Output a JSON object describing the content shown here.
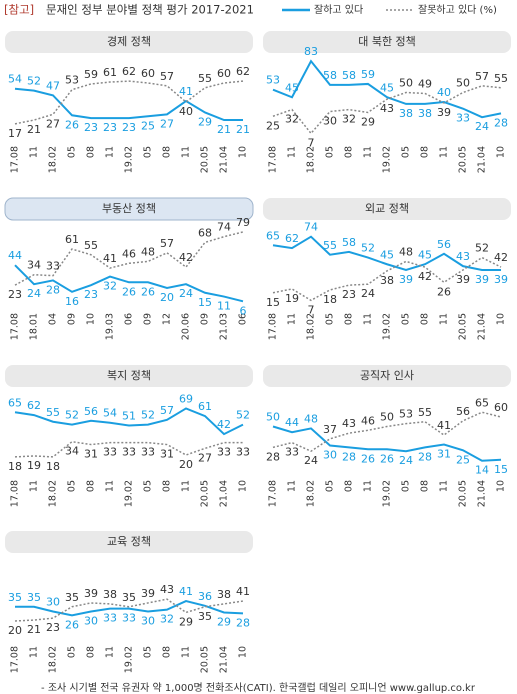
{
  "header": {
    "tag": "[참고]",
    "title": "문재인 정부 분야별 정책 평가 2017-2021"
  },
  "legend": [
    {
      "name": "잘하고 있다",
      "color": "#1a9ee0",
      "dash": false
    },
    {
      "name": "잘못하고 있다 (%)",
      "color": "#888888",
      "dash": true
    }
  ],
  "chart_data": [
    {
      "type": "line",
      "title": "경제 정책",
      "ylim": [
        0,
        100
      ],
      "categories": [
        "17.08",
        "11",
        "18.02",
        "05",
        "08",
        "11",
        "19.02",
        "05",
        "08",
        "11",
        "20.05",
        "21.04",
        "10"
      ],
      "series": [
        {
          "values": [
            54,
            52,
            47,
            26,
            23,
            23,
            23,
            25,
            27,
            41,
            29,
            21,
            21
          ]
        },
        {
          "values": [
            17,
            21,
            27,
            53,
            59,
            61,
            62,
            60,
            57,
            40,
            55,
            60,
            62
          ]
        }
      ]
    },
    {
      "type": "line",
      "title": "대 북한 정책",
      "ylim": [
        0,
        100
      ],
      "categories": [
        "17.08",
        "11",
        "18.02",
        "05",
        "08",
        "11",
        "19.02",
        "05",
        "08",
        "11",
        "20.05",
        "21.04",
        "10"
      ],
      "series": [
        {
          "values": [
            53,
            45,
            83,
            58,
            58,
            59,
            45,
            38,
            38,
            40,
            33,
            24,
            28
          ]
        },
        {
          "values": [
            25,
            32,
            7,
            30,
            32,
            29,
            43,
            50,
            49,
            39,
            50,
            57,
            55
          ]
        }
      ]
    },
    {
      "type": "line",
      "title": "부동산 정책",
      "ylim": [
        0,
        100
      ],
      "highlight": true,
      "categories": [
        "17.08",
        "18.01",
        "04",
        "09",
        "10",
        "19.03",
        "06",
        "09",
        "12",
        "20.06",
        "09",
        "21.03",
        "06"
      ],
      "series": [
        {
          "values": [
            44,
            24,
            28,
            16,
            23,
            32,
            26,
            26,
            20,
            24,
            15,
            11,
            6
          ]
        },
        {
          "values": [
            23,
            34,
            33,
            61,
            55,
            41,
            46,
            48,
            57,
            42,
            68,
            74,
            79
          ]
        }
      ]
    },
    {
      "type": "line",
      "title": "외교 정책",
      "ylim": [
        0,
        100
      ],
      "categories": [
        "17.08",
        "11",
        "18.02",
        "05",
        "08",
        "11",
        "19.02",
        "05",
        "08",
        "11",
        "20.05",
        "21.04",
        "10"
      ],
      "series": [
        {
          "values": [
            65,
            62,
            74,
            55,
            58,
            52,
            45,
            39,
            45,
            56,
            43,
            39,
            39
          ]
        },
        {
          "values": [
            15,
            19,
            7,
            18,
            23,
            24,
            38,
            48,
            42,
            26,
            39,
            52,
            42
          ]
        }
      ]
    },
    {
      "type": "line",
      "title": "복지 정책",
      "ylim": [
        0,
        100
      ],
      "categories": [
        "17.08",
        "11",
        "18.02",
        "05",
        "08",
        "11",
        "19.02",
        "05",
        "08",
        "11",
        "20.05",
        "21.04",
        "10"
      ],
      "series": [
        {
          "values": [
            65,
            62,
            55,
            52,
            56,
            54,
            51,
            52,
            57,
            69,
            61,
            42,
            52
          ]
        },
        {
          "values": [
            18,
            19,
            18,
            34,
            31,
            33,
            33,
            33,
            31,
            20,
            27,
            33,
            33
          ]
        }
      ]
    },
    {
      "type": "line",
      "title": "공직자 인사",
      "ylim": [
        0,
        100
      ],
      "categories": [
        "17.08",
        "11",
        "18.02",
        "05",
        "08",
        "11",
        "19.02",
        "05",
        "08",
        "11",
        "20.05",
        "21.04",
        "10"
      ],
      "series": [
        {
          "values": [
            50,
            44,
            48,
            30,
            28,
            26,
            26,
            24,
            28,
            31,
            25,
            14,
            15
          ]
        },
        {
          "values": [
            28,
            33,
            24,
            37,
            43,
            46,
            50,
            53,
            55,
            41,
            56,
            65,
            60
          ]
        }
      ]
    },
    {
      "type": "line",
      "title": "교육 정책",
      "ylim": [
        0,
        100
      ],
      "categories": [
        "17.08",
        "11",
        "18.02",
        "05",
        "08",
        "11",
        "19.02",
        "05",
        "08",
        "11",
        "20.05",
        "21.04",
        "10"
      ],
      "series": [
        {
          "values": [
            35,
            35,
            30,
            26,
            30,
            33,
            33,
            30,
            32,
            41,
            36,
            29,
            28
          ]
        },
        {
          "values": [
            20,
            21,
            23,
            35,
            39,
            38,
            35,
            39,
            43,
            29,
            35,
            38,
            41
          ]
        }
      ]
    }
  ],
  "footnote": "- 조사 시기별 전국 유권자 약 1,000명 전화조사(CATI). 한국갤럽 데일리 오피니언 www.gallup.co.kr"
}
